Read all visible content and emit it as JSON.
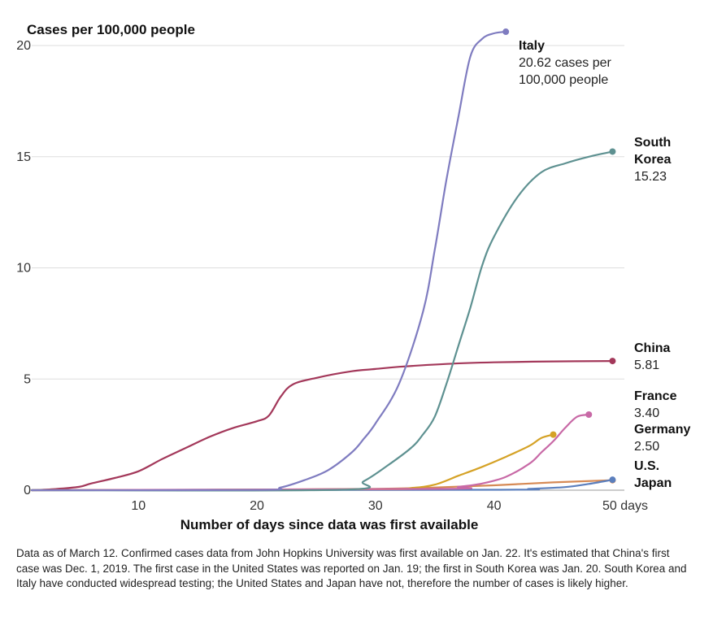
{
  "chart_data": {
    "type": "line",
    "ylabel": "Cases per 100,000 people",
    "xlabel": "Number of days since data was first available",
    "xlim": [
      1,
      51
    ],
    "ylim": [
      0,
      20
    ],
    "y_ticks": [
      0,
      5,
      10,
      15,
      20
    ],
    "y_tick_labels": [
      "0",
      "5",
      "10",
      "15",
      "20"
    ],
    "x_ticks": [
      10,
      20,
      30,
      40,
      50
    ],
    "x_tick_labels": [
      "10",
      "20",
      "30",
      "40",
      "50 days"
    ],
    "series": [
      {
        "name": "China",
        "color": "#a3385a",
        "label_lines": [
          "China"
        ],
        "value_lines": [
          "5.81"
        ],
        "x": [
          1,
          3,
          5,
          6,
          8,
          10,
          12,
          14,
          16,
          18,
          20,
          21,
          22,
          23,
          25,
          28,
          30,
          32,
          36,
          40,
          45,
          50
        ],
        "y": [
          0,
          0.05,
          0.15,
          0.3,
          0.55,
          0.85,
          1.4,
          1.9,
          2.4,
          2.8,
          3.1,
          3.35,
          4.2,
          4.75,
          5.05,
          5.35,
          5.45,
          5.55,
          5.68,
          5.75,
          5.79,
          5.81
        ]
      },
      {
        "name": "Italy",
        "color": "#7f7cc0",
        "label_lines": [
          "Italy"
        ],
        "value_lines": [
          "20.62 cases per",
          "100,000 people"
        ],
        "x": [
          1,
          20,
          22,
          24,
          26,
          28,
          29,
          30,
          32,
          34,
          35,
          36,
          37,
          38,
          39,
          40,
          41
        ],
        "y": [
          0,
          0.01,
          0.12,
          0.45,
          0.9,
          1.7,
          2.3,
          3.0,
          4.8,
          8.0,
          10.8,
          14.0,
          16.8,
          19.5,
          20.3,
          20.55,
          20.62
        ]
      },
      {
        "name": "South Korea",
        "color": "#5e9191",
        "label_lines": [
          "South",
          "Korea"
        ],
        "value_lines": [
          "15.23"
        ],
        "x": [
          1,
          27,
          29,
          31,
          33,
          34,
          35,
          36,
          37,
          38,
          39,
          40,
          42,
          44,
          46,
          48,
          50
        ],
        "y": [
          0,
          0.02,
          0.4,
          1.1,
          1.9,
          2.5,
          3.3,
          4.8,
          6.5,
          8.2,
          10.1,
          11.4,
          13.2,
          14.3,
          14.7,
          15.0,
          15.23
        ]
      },
      {
        "name": "France",
        "color": "#c869a6",
        "label_lines": [
          "France"
        ],
        "value_lines": [
          "3.40"
        ],
        "x": [
          1,
          35,
          37,
          39,
          41,
          43,
          44,
          45,
          46,
          47,
          48
        ],
        "y": [
          0,
          0.06,
          0.15,
          0.3,
          0.6,
          1.2,
          1.7,
          2.2,
          2.8,
          3.3,
          3.4
        ]
      },
      {
        "name": "Germany",
        "color": "#d5a226",
        "label_lines": [
          "Germany"
        ],
        "value_lines": [
          "2.50"
        ],
        "x": [
          1,
          30,
          33,
          35,
          37,
          39,
          41,
          43,
          44,
          45
        ],
        "y": [
          0,
          0.04,
          0.1,
          0.25,
          0.65,
          1.05,
          1.5,
          2.0,
          2.35,
          2.5
        ]
      },
      {
        "name": "U.S.",
        "color": "#5b7fbd",
        "label_lines": [
          "U.S."
        ],
        "value_lines": [],
        "x": [
          1,
          40,
          43,
          46,
          48,
          50
        ],
        "y": [
          0,
          0.02,
          0.06,
          0.14,
          0.28,
          0.47
        ]
      },
      {
        "name": "Japan",
        "color": "#d68a55",
        "label_lines": [
          "Japan"
        ],
        "value_lines": [],
        "x": [
          1,
          10,
          20,
          30,
          35,
          40,
          45,
          50
        ],
        "y": [
          0,
          0.01,
          0.03,
          0.06,
          0.12,
          0.22,
          0.35,
          0.45
        ]
      }
    ]
  },
  "note": "Data as of March 12. Confirmed cases data from John Hopkins University was first available on Jan. 22. It's estimated that China's first case was Dec. 1, 2019. The first case in the United States was reported on Jan. 19; the first in South Korea was Jan. 20. South Korea and Italy have conducted widespread testing; the United States and Japan have not, therefore the number of cases is likely higher."
}
